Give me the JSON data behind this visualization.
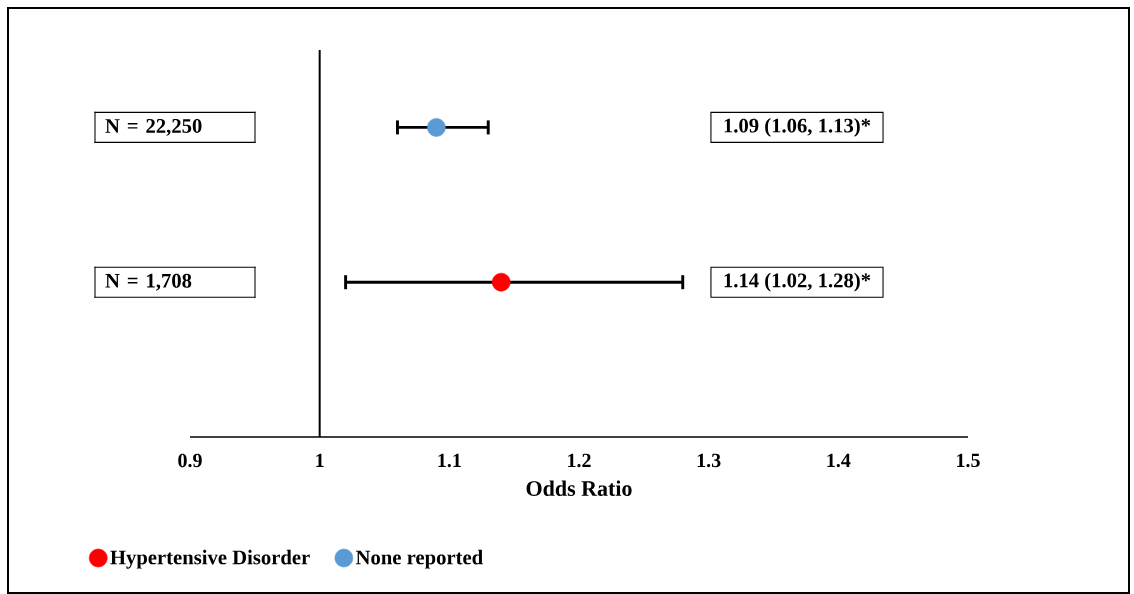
{
  "chart_data": {
    "type": "scatter",
    "orientation": "horizontal",
    "xlabel": "Odds Ratio",
    "categories": [
      "N = 22,250",
      "N = 1,708"
    ],
    "xlim": [
      0.9,
      1.5
    ],
    "xticks": [
      0.9,
      1,
      1.1,
      1.2,
      1.3,
      1.4,
      1.5
    ],
    "marker": "circle",
    "legend": "bottom",
    "ref_lines": [
      {
        "axis": "x",
        "value": 1
      }
    ],
    "series": [
      {
        "name": "Hypertensive Disorder",
        "color": "#ff0000",
        "values": [
          null,
          1.14
        ],
        "errors": [
          null,
          [
            1.02,
            1.28
          ]
        ]
      },
      {
        "name": "None reported",
        "color": "#5b9bd5",
        "values": [
          1.09,
          null
        ],
        "errors": [
          [
            1.06,
            1.13
          ],
          null
        ]
      }
    ],
    "annotations": [
      "1.09 (1.06, 1.13)*",
      "1.14 (1.02, 1.28)*"
    ]
  }
}
